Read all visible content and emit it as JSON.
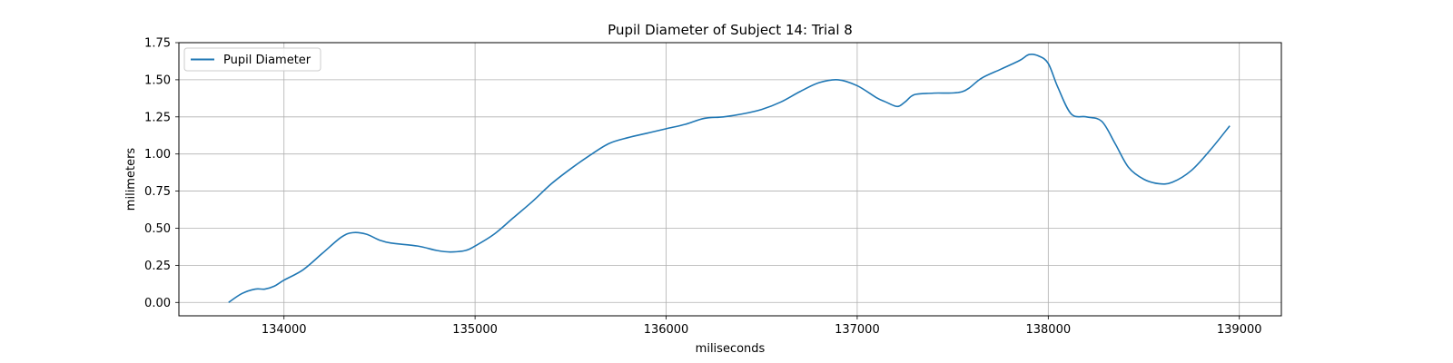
{
  "chart_data": {
    "type": "line",
    "title": "Pupil Diameter of Subject 14: Trial 8",
    "xlabel": "miliseconds",
    "ylabel": "milimeters",
    "xlim": [
      133450,
      139220
    ],
    "ylim": [
      -0.09,
      1.75
    ],
    "xticks": [
      134000,
      135000,
      136000,
      137000,
      138000,
      139000
    ],
    "xtick_labels": [
      "134000",
      "135000",
      "136000",
      "137000",
      "138000",
      "139000"
    ],
    "yticks": [
      0.0,
      0.25,
      0.5,
      0.75,
      1.0,
      1.25,
      1.5,
      1.75
    ],
    "ytick_labels": [
      "0.00",
      "0.25",
      "0.50",
      "0.75",
      "1.00",
      "1.25",
      "1.50",
      "1.75"
    ],
    "grid": true,
    "legend_position": "top-left",
    "series": [
      {
        "name": "Pupil Diameter",
        "color": "#1f77b4",
        "x": [
          133710,
          133780,
          133850,
          133900,
          133950,
          134000,
          134100,
          134200,
          134300,
          134360,
          134430,
          134500,
          134560,
          134700,
          134800,
          134870,
          134950,
          135000,
          135100,
          135200,
          135300,
          135400,
          135500,
          135600,
          135700,
          135800,
          135900,
          136000,
          136100,
          136200,
          136300,
          136400,
          136500,
          136600,
          136700,
          136800,
          136900,
          137000,
          137100,
          137150,
          137210,
          137250,
          137300,
          137400,
          137550,
          137650,
          137750,
          137850,
          137900,
          137950,
          138000,
          138050,
          138120,
          138200,
          138280,
          138350,
          138420,
          138500,
          138580,
          138650,
          138750,
          138850,
          138950
        ],
        "y": [
          0.0,
          0.06,
          0.09,
          0.09,
          0.11,
          0.15,
          0.22,
          0.33,
          0.44,
          0.47,
          0.46,
          0.42,
          0.4,
          0.38,
          0.35,
          0.34,
          0.35,
          0.38,
          0.46,
          0.57,
          0.68,
          0.8,
          0.9,
          0.99,
          1.07,
          1.11,
          1.14,
          1.17,
          1.2,
          1.24,
          1.25,
          1.27,
          1.3,
          1.35,
          1.42,
          1.48,
          1.5,
          1.46,
          1.38,
          1.35,
          1.32,
          1.35,
          1.4,
          1.41,
          1.42,
          1.51,
          1.57,
          1.63,
          1.67,
          1.66,
          1.61,
          1.45,
          1.27,
          1.25,
          1.22,
          1.07,
          0.91,
          0.83,
          0.8,
          0.81,
          0.89,
          1.03,
          1.19
        ]
      }
    ]
  }
}
